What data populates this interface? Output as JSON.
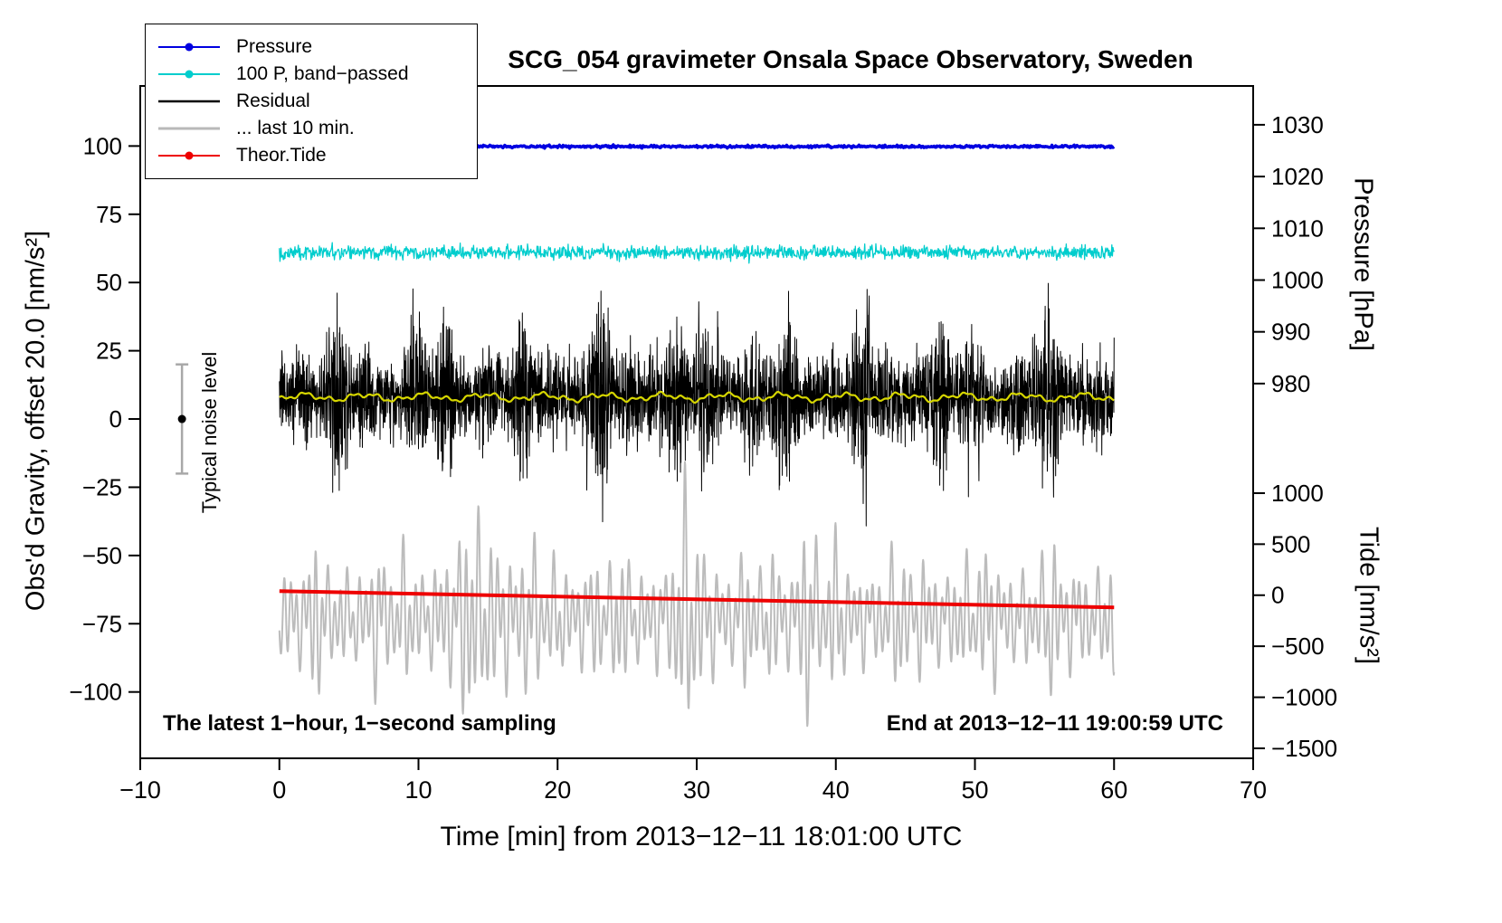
{
  "chart_data": {
    "type": "line",
    "title": "SCG_054 gravimeter Onsala Space Observatory, Sweden",
    "xlabel": "Time [min] from 2013−12−11 18:01:00 UTC",
    "ylabel_left": "Obs'd Gravity, offset 20.0 [nm/s²]",
    "ylabel_pressure": "Pressure [hPa]",
    "ylabel_tide": "Tide [nm/s²]",
    "footnote_left": "The latest 1−hour, 1−second sampling",
    "footnote_right": "End at 2013−12−11 19:00:59 UTC",
    "noise_marker": {
      "label": "Typical noise level",
      "x": -7,
      "center": 0,
      "half_range": 20,
      "color": "#a8a8a8"
    },
    "x_axis": {
      "min": -10,
      "max": 70,
      "ticks": [
        -10,
        0,
        10,
        20,
        30,
        40,
        50,
        60,
        70
      ]
    },
    "left_axis": {
      "top_value": 122,
      "bottom_value": -124.3,
      "ticks": [
        100,
        75,
        50,
        25,
        0,
        -25,
        -50,
        -75,
        -100
      ]
    },
    "pressure_axis": {
      "top_value": 1037.5,
      "bottom_value": 907.6,
      "ticks": [
        1030,
        1020,
        1010,
        1000,
        990,
        980
      ]
    },
    "tide_axis": {
      "top_value": 4989,
      "bottom_value": -1598,
      "ticks": [
        1000,
        500,
        0,
        -500,
        -1000,
        -1500
      ]
    },
    "legend": [
      {
        "label": "Pressure",
        "color": "#0000e0",
        "marker": true,
        "width": 2
      },
      {
        "label": "100 P, band−passed",
        "color": "#00cdcd",
        "marker": true,
        "width": 2
      },
      {
        "label": "Residual",
        "color": "#000000",
        "marker": false,
        "width": 2.5
      },
      {
        "label": "... last 10 min.",
        "color": "#b9b9b9",
        "marker": false,
        "width": 3
      },
      {
        "label": "Theor.Tide",
        "color": "#ee0000",
        "marker": true,
        "width": 2
      }
    ],
    "series": [
      {
        "name": "last-10-min",
        "style": "oscillation",
        "axis": "left",
        "color": "#bcbcbc",
        "width": 2,
        "x_start": 0,
        "x_end": 60,
        "center": -73,
        "amp": 22,
        "points_per_min": 40,
        "seed": 55
      },
      {
        "name": "theor-tide",
        "style": "linear",
        "axis": "tide",
        "color": "#ee0000",
        "width": 4,
        "x_start": 0,
        "x_end": 60,
        "value_start": 40,
        "value_end": -120
      },
      {
        "name": "residual",
        "style": "burst-noise",
        "axis": "left",
        "color": "#000000",
        "width": 1,
        "x_start": 0,
        "x_end": 60,
        "base": 8,
        "sigma": 13,
        "points_per_min": 60,
        "seed": 33
      },
      {
        "name": "residual-smoothed",
        "style": "smooth",
        "axis": "left",
        "color": "#d6d600",
        "width": 2.2,
        "x_start": 0,
        "x_end": 60,
        "base": 8,
        "amp": 1.4,
        "points_per_min": 8,
        "seed": 44
      },
      {
        "name": "pressure-band-passed",
        "style": "noise",
        "axis": "left",
        "color": "#00cdcd",
        "width": 1.3,
        "x_start": 0,
        "x_end": 60,
        "base": 61,
        "sigma": 1.2,
        "points_per_min": 25,
        "seed": 22
      },
      {
        "name": "pressure",
        "style": "flat",
        "axis": "pressure",
        "color": "#0000e0",
        "width": 3.5,
        "x_start": 0,
        "x_end": 60,
        "value": 1025.8,
        "sigma": 0.12,
        "points_per_min": 15,
        "seed": 11
      }
    ]
  }
}
